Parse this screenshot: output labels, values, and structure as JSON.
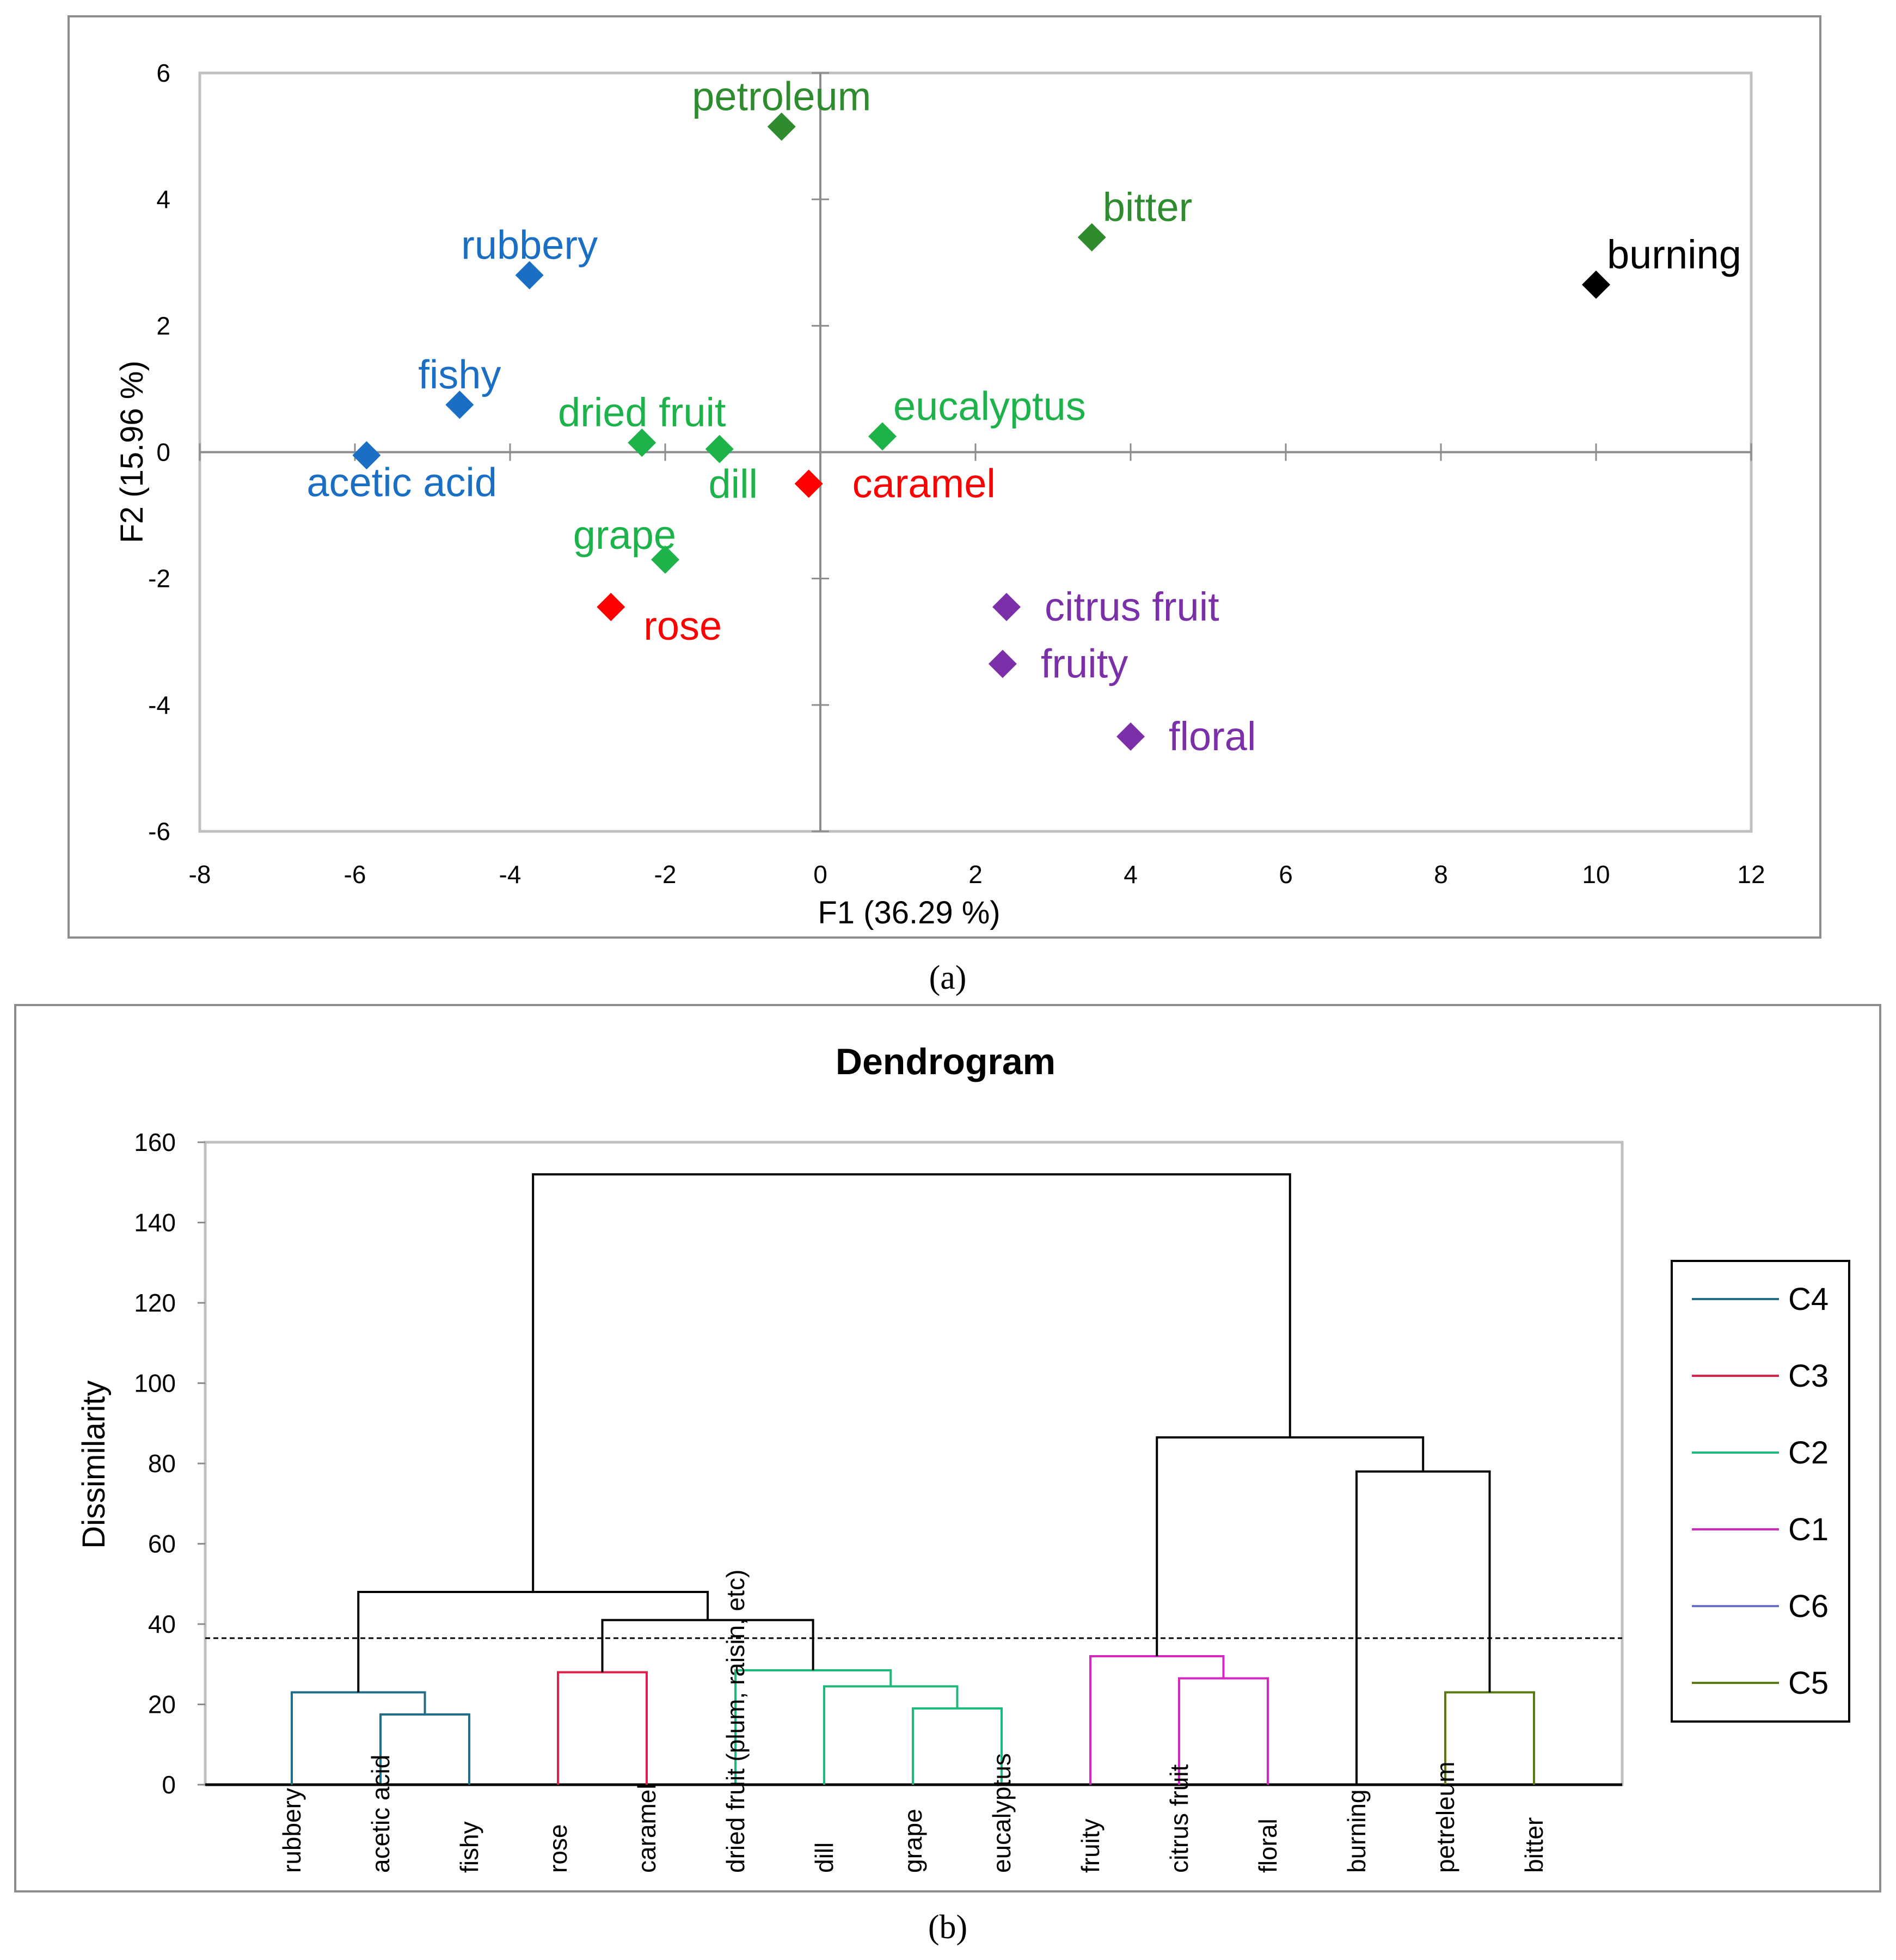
{
  "chart_data": [
    {
      "type": "scatter",
      "caption": "(a)",
      "xlabel": "F1 (36.29 %)",
      "ylabel": "F2 (15.96 %)",
      "xlim": [
        -8,
        12
      ],
      "ylim": [
        -6,
        6
      ],
      "xticks": [
        "-8",
        "-6",
        "-4",
        "-2",
        "0",
        "2",
        "4",
        "6",
        "8",
        "10",
        "12"
      ],
      "yticks": [
        "-6",
        "-4",
        "-2",
        "0",
        "2",
        "4",
        "6"
      ],
      "colors": {
        "blue": "#1a6fc4",
        "dark_green": "#2e8b2e",
        "green": "#1db34a",
        "red": "#ff0000",
        "purple": "#7b2fa8",
        "black": "#000000"
      },
      "points": [
        {
          "label": "petroleum",
          "x": -0.5,
          "y": 5.15,
          "color": "#2e8b2e",
          "anchor": "above"
        },
        {
          "label": "bitter",
          "x": 3.5,
          "y": 3.4,
          "color": "#2e8b2e",
          "anchor": "above-right"
        },
        {
          "label": "burning",
          "x": 10.0,
          "y": 2.65,
          "color": "#000000",
          "anchor": "above-right"
        },
        {
          "label": "rubbery",
          "x": -3.75,
          "y": 2.8,
          "color": "#1a6fc4",
          "anchor": "above"
        },
        {
          "label": "fishy",
          "x": -4.65,
          "y": 0.75,
          "color": "#1a6fc4",
          "anchor": "above"
        },
        {
          "label": "acetic acid",
          "x": -5.85,
          "y": -0.05,
          "color": "#1a6fc4",
          "anchor": "below-right"
        },
        {
          "label": "dried fruit",
          "x": -2.3,
          "y": 0.15,
          "color": "#1db34a",
          "anchor": "above"
        },
        {
          "label": "dill",
          "x": -1.3,
          "y": 0.05,
          "color": "#1db34a",
          "anchor": "below"
        },
        {
          "label": "eucalyptus",
          "x": 0.8,
          "y": 0.25,
          "color": "#1db34a",
          "anchor": "above-right"
        },
        {
          "label": "caramel",
          "x": -0.15,
          "y": -0.5,
          "color": "#ff0000",
          "anchor": "right"
        },
        {
          "label": "grape",
          "x": -2.0,
          "y": -1.7,
          "color": "#1db34a",
          "anchor": "above-left"
        },
        {
          "label": "rose",
          "x": -2.7,
          "y": -2.45,
          "color": "#ff0000",
          "anchor": "below-right"
        },
        {
          "label": "citrus fruit",
          "x": 2.4,
          "y": -2.45,
          "color": "#7b2fa8",
          "anchor": "right"
        },
        {
          "label": "fruity",
          "x": 2.35,
          "y": -3.35,
          "color": "#7b2fa8",
          "anchor": "right"
        },
        {
          "label": "floral",
          "x": 4.0,
          "y": -4.5,
          "color": "#7b2fa8",
          "anchor": "right"
        }
      ]
    },
    {
      "type": "dendrogram",
      "caption": "(b)",
      "title": "Dendrogram",
      "ylabel": "Dissimilarity",
      "ylim": [
        0,
        160
      ],
      "yticks": [
        "0",
        "20",
        "40",
        "60",
        "80",
        "100",
        "120",
        "140",
        "160"
      ],
      "cut_line": 36.5,
      "leaves": [
        "rubbery",
        "acetic acid",
        "fishy",
        "rose",
        "caramel",
        "dried fruit (plum, raisin, etc)",
        "dill",
        "grape",
        "eucalyptus",
        "fruity",
        "citrus fruit",
        "floral",
        "burning",
        "petreleum",
        "bitter"
      ],
      "merges": [
        {
          "left": 1,
          "right": 2,
          "height": 17.5,
          "color": "#1f6f8b"
        },
        {
          "left": 0,
          "right": "m0",
          "height": 23,
          "color": "#1f6f8b"
        },
        {
          "left": 3,
          "right": 4,
          "height": 28,
          "color": "#e0204a"
        },
        {
          "left": 7,
          "right": 8,
          "height": 19,
          "color": "#1db97a"
        },
        {
          "left": 6,
          "right": "m3",
          "height": 24.5,
          "color": "#1db97a"
        },
        {
          "left": 5,
          "right": "m4",
          "height": 28.5,
          "color": "#1db97a"
        },
        {
          "left": 10,
          "right": 11,
          "height": 26.5,
          "color": "#d428c0"
        },
        {
          "left": 9,
          "right": "m6",
          "height": 32,
          "color": "#d428c0"
        },
        {
          "left": 13,
          "right": 14,
          "height": 23,
          "color": "#5a7a10"
        },
        {
          "left": "m2",
          "right": "m5",
          "height": 41,
          "color": "#000000"
        },
        {
          "left": "m1",
          "right": "m9",
          "height": 48,
          "color": "#000000"
        },
        {
          "left": 12,
          "right": "m8",
          "height": 78,
          "color": "#000000"
        },
        {
          "left": "m7",
          "right": "m11",
          "height": 86.5,
          "color": "#000000"
        },
        {
          "left": "m10",
          "right": "m12",
          "height": 152,
          "color": "#000000"
        }
      ],
      "legend": [
        {
          "name": "C4",
          "color": "#1f6f8b"
        },
        {
          "name": "C3",
          "color": "#e0204a"
        },
        {
          "name": "C2",
          "color": "#1db97a"
        },
        {
          "name": "C1",
          "color": "#d428c0"
        },
        {
          "name": "C6",
          "color": "#6a70c8"
        },
        {
          "name": "C5",
          "color": "#5a7a10"
        }
      ]
    }
  ]
}
